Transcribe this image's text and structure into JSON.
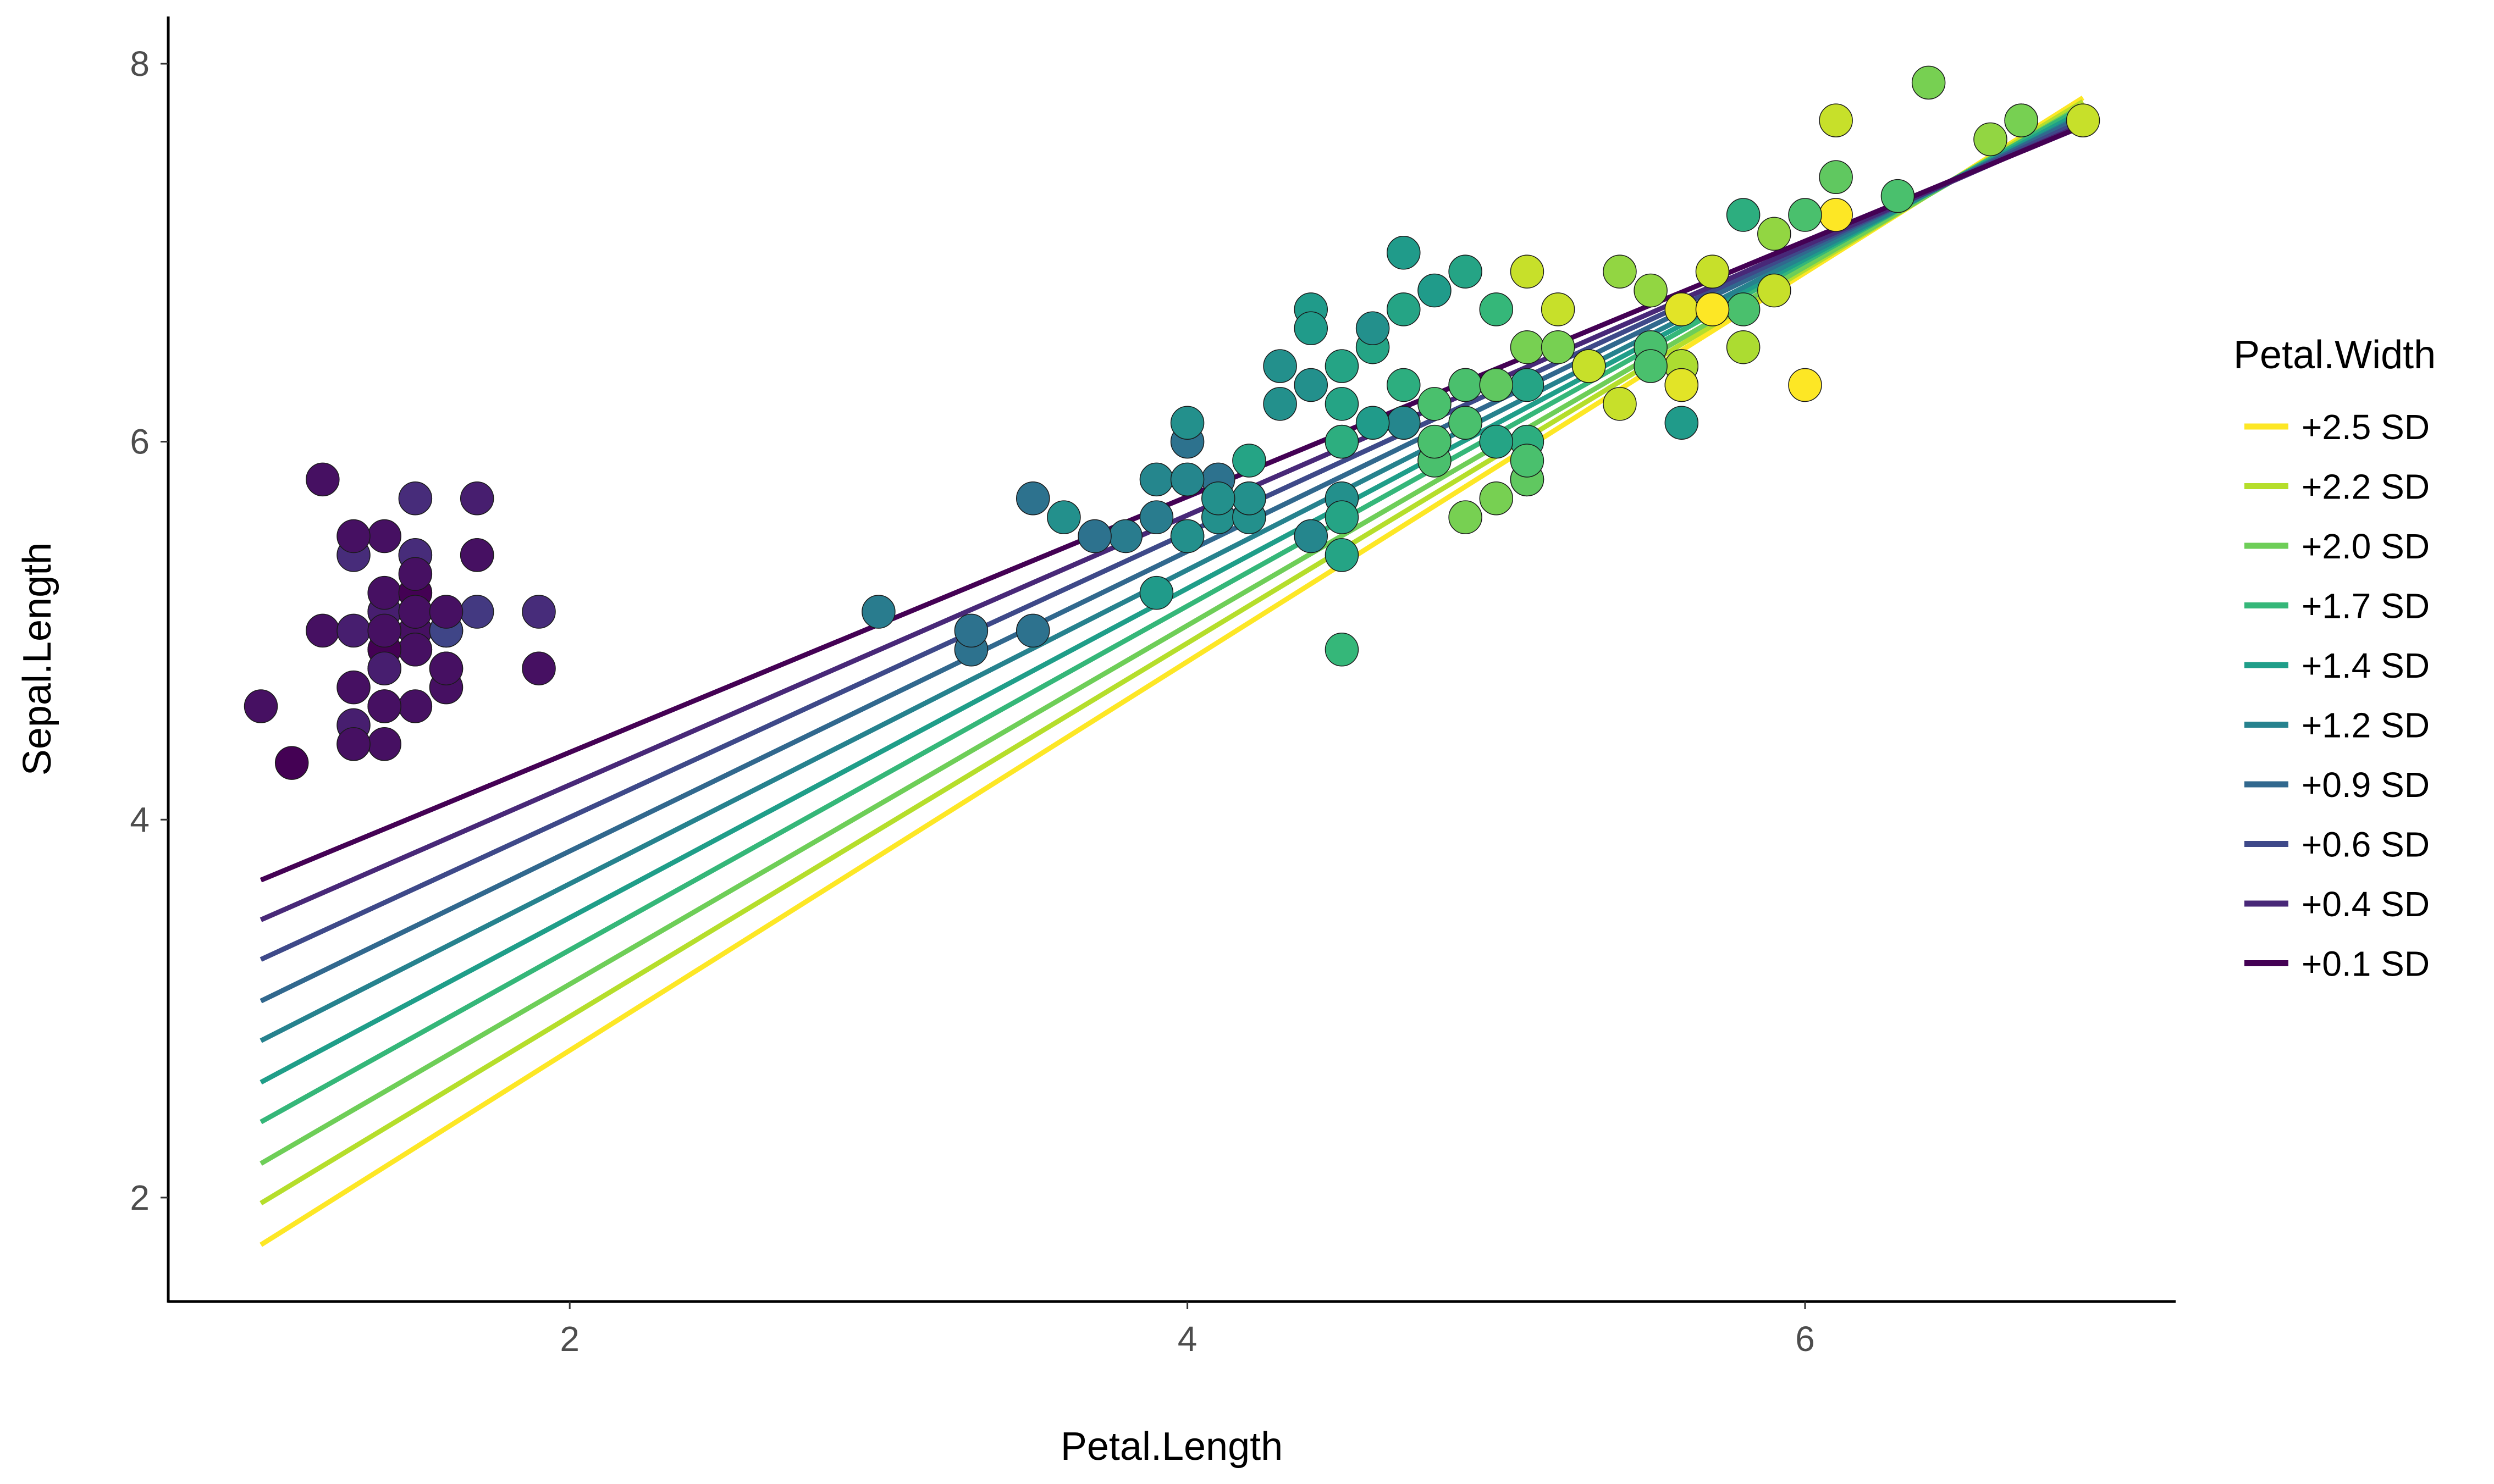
{
  "chart_data": {
    "type": "scatter",
    "title": "",
    "xlabel": "Petal.Length",
    "ylabel": "Sepal.Length",
    "xlim": [
      0.7,
      7.2
    ],
    "ylim": [
      1.45,
      8.25
    ],
    "x_ticks": [
      2,
      4,
      6
    ],
    "y_ticks": [
      2,
      4,
      6,
      8
    ],
    "grid": false,
    "legend": {
      "title": "Petal.Width",
      "placement": "right",
      "entries": [
        "+2.5 SD",
        "+2.2 SD",
        "+2.0 SD",
        "+1.7 SD",
        "+1.4 SD",
        "+1.2 SD",
        "+0.9 SD",
        "+0.6 SD",
        "+0.4 SD",
        "+0.1 SD"
      ]
    },
    "color_scale": {
      "min": 0.1,
      "max": 2.5,
      "palette": [
        "#440154",
        "#482878",
        "#3e4989",
        "#31688e",
        "#26828e",
        "#1f9e89",
        "#35b779",
        "#6ece58",
        "#b5de2b",
        "#fde725"
      ]
    },
    "lines": [
      {
        "name": "+2.5 SD",
        "petal_width": 2.5,
        "color": "#fde725",
        "x": [
          1.0,
          6.9
        ],
        "y": [
          1.75,
          7.82
        ]
      },
      {
        "name": "+2.2 SD",
        "petal_width": 2.2,
        "color": "#b5de2b",
        "x": [
          1.0,
          6.9
        ],
        "y": [
          1.97,
          7.8
        ]
      },
      {
        "name": "+2.0 SD",
        "petal_width": 2.0,
        "color": "#6ece58",
        "x": [
          1.0,
          6.9
        ],
        "y": [
          2.18,
          7.78
        ]
      },
      {
        "name": "+1.7 SD",
        "petal_width": 1.7,
        "color": "#35b779",
        "x": [
          1.0,
          6.9
        ],
        "y": [
          2.4,
          7.77
        ]
      },
      {
        "name": "+1.4 SD",
        "petal_width": 1.4,
        "color": "#1f9e89",
        "x": [
          1.0,
          6.9
        ],
        "y": [
          2.61,
          7.75
        ]
      },
      {
        "name": "+1.2 SD",
        "petal_width": 1.2,
        "color": "#26828e",
        "x": [
          1.0,
          6.9
        ],
        "y": [
          2.83,
          7.73
        ]
      },
      {
        "name": "+0.9 SD",
        "petal_width": 0.9,
        "color": "#31688e",
        "x": [
          1.0,
          6.9
        ],
        "y": [
          3.04,
          7.72
        ]
      },
      {
        "name": "+0.6 SD",
        "petal_width": 0.6,
        "color": "#3e4989",
        "x": [
          1.0,
          6.9
        ],
        "y": [
          3.26,
          7.7
        ]
      },
      {
        "name": "+0.4 SD",
        "petal_width": 0.4,
        "color": "#482878",
        "x": [
          1.0,
          6.9
        ],
        "y": [
          3.47,
          7.68
        ]
      },
      {
        "name": "+0.1 SD",
        "petal_width": 0.1,
        "color": "#440154",
        "x": [
          1.0,
          6.9
        ],
        "y": [
          3.68,
          7.67
        ]
      }
    ],
    "points": [
      [
        1.4,
        5.1,
        0.2
      ],
      [
        1.4,
        4.9,
        0.2
      ],
      [
        1.3,
        4.7,
        0.2
      ],
      [
        1.5,
        4.6,
        0.2
      ],
      [
        1.4,
        5.0,
        0.2
      ],
      [
        1.7,
        5.4,
        0.4
      ],
      [
        1.4,
        4.6,
        0.3
      ],
      [
        1.5,
        5.0,
        0.2
      ],
      [
        1.4,
        4.4,
        0.2
      ],
      [
        1.5,
        4.9,
        0.1
      ],
      [
        1.5,
        5.4,
        0.2
      ],
      [
        1.6,
        4.8,
        0.2
      ],
      [
        1.4,
        4.8,
        0.1
      ],
      [
        1.1,
        4.3,
        0.1
      ],
      [
        1.2,
        5.8,
        0.2
      ],
      [
        1.5,
        5.7,
        0.4
      ],
      [
        1.3,
        5.4,
        0.4
      ],
      [
        1.4,
        5.1,
        0.3
      ],
      [
        1.7,
        5.7,
        0.3
      ],
      [
        1.5,
        5.1,
        0.3
      ],
      [
        1.7,
        5.4,
        0.2
      ],
      [
        1.5,
        5.1,
        0.4
      ],
      [
        1.0,
        4.6,
        0.2
      ],
      [
        1.7,
        5.1,
        0.5
      ],
      [
        1.9,
        4.8,
        0.2
      ],
      [
        1.6,
        5.0,
        0.2
      ],
      [
        1.6,
        5.0,
        0.4
      ],
      [
        1.5,
        5.2,
        0.2
      ],
      [
        1.4,
        5.2,
        0.2
      ],
      [
        1.6,
        4.7,
        0.2
      ],
      [
        1.6,
        4.8,
        0.2
      ],
      [
        1.5,
        5.4,
        0.4
      ],
      [
        1.5,
        5.2,
        0.1
      ],
      [
        1.4,
        5.5,
        0.2
      ],
      [
        1.5,
        4.9,
        0.2
      ],
      [
        1.2,
        5.0,
        0.2
      ],
      [
        1.3,
        5.5,
        0.2
      ],
      [
        1.4,
        4.9,
        0.1
      ],
      [
        1.3,
        4.4,
        0.2
      ],
      [
        1.5,
        5.1,
        0.2
      ],
      [
        1.3,
        5.0,
        0.3
      ],
      [
        1.3,
        4.5,
        0.3
      ],
      [
        1.3,
        4.4,
        0.2
      ],
      [
        1.6,
        5.0,
        0.6
      ],
      [
        1.9,
        5.1,
        0.4
      ],
      [
        1.4,
        4.8,
        0.3
      ],
      [
        1.6,
        5.1,
        0.2
      ],
      [
        1.4,
        4.6,
        0.2
      ],
      [
        1.5,
        5.3,
        0.2
      ],
      [
        1.4,
        5.0,
        0.2
      ],
      [
        4.7,
        7.0,
        1.4
      ],
      [
        4.5,
        6.4,
        1.5
      ],
      [
        4.9,
        6.9,
        1.5
      ],
      [
        4.0,
        5.5,
        1.3
      ],
      [
        4.6,
        6.5,
        1.5
      ],
      [
        4.5,
        5.7,
        1.3
      ],
      [
        4.7,
        6.3,
        1.6
      ],
      [
        3.3,
        4.9,
        1.0
      ],
      [
        4.6,
        6.6,
        1.3
      ],
      [
        3.9,
        5.2,
        1.4
      ],
      [
        3.5,
        5.0,
        1.0
      ],
      [
        4.2,
        5.9,
        1.5
      ],
      [
        4.0,
        6.0,
        1.0
      ],
      [
        4.7,
        6.1,
        1.4
      ],
      [
        3.6,
        5.6,
        1.3
      ],
      [
        4.4,
        6.7,
        1.4
      ],
      [
        4.5,
        5.6,
        1.5
      ],
      [
        4.1,
        5.8,
        1.0
      ],
      [
        4.5,
        6.2,
        1.5
      ],
      [
        3.9,
        5.6,
        1.1
      ],
      [
        4.8,
        5.9,
        1.8
      ],
      [
        4.0,
        6.1,
        1.3
      ],
      [
        4.9,
        6.3,
        1.5
      ],
      [
        4.7,
        6.1,
        1.2
      ],
      [
        4.3,
        6.4,
        1.3
      ],
      [
        4.4,
        6.6,
        1.4
      ],
      [
        4.8,
        6.8,
        1.4
      ],
      [
        5.0,
        6.7,
        1.7
      ],
      [
        4.5,
        6.0,
        1.5
      ],
      [
        3.5,
        5.7,
        1.0
      ],
      [
        3.8,
        5.5,
        1.1
      ],
      [
        3.7,
        5.5,
        1.0
      ],
      [
        3.9,
        5.8,
        1.2
      ],
      [
        5.1,
        6.0,
        1.6
      ],
      [
        4.5,
        5.4,
        1.5
      ],
      [
        4.5,
        6.0,
        1.6
      ],
      [
        4.7,
        6.7,
        1.5
      ],
      [
        4.4,
        6.3,
        1.3
      ],
      [
        4.1,
        5.6,
        1.3
      ],
      [
        4.0,
        5.5,
        1.3
      ],
      [
        4.4,
        5.5,
        1.2
      ],
      [
        4.6,
        6.1,
        1.4
      ],
      [
        4.0,
        5.8,
        1.2
      ],
      [
        3.3,
        5.0,
        1.0
      ],
      [
        4.2,
        5.6,
        1.3
      ],
      [
        4.2,
        5.7,
        1.2
      ],
      [
        4.2,
        5.7,
        1.3
      ],
      [
        4.3,
        6.2,
        1.3
      ],
      [
        3.0,
        5.1,
        1.1
      ],
      [
        4.1,
        5.7,
        1.3
      ],
      [
        6.0,
        6.3,
        2.5
      ],
      [
        5.1,
        5.8,
        1.9
      ],
      [
        5.9,
        7.1,
        2.1
      ],
      [
        5.6,
        6.3,
        1.8
      ],
      [
        5.8,
        6.5,
        2.2
      ],
      [
        6.6,
        7.6,
        2.1
      ],
      [
        4.5,
        4.9,
        1.7
      ],
      [
        6.3,
        7.3,
        1.8
      ],
      [
        5.8,
        6.7,
        1.8
      ],
      [
        6.1,
        7.2,
        2.5
      ],
      [
        5.1,
        6.5,
        2.0
      ],
      [
        5.3,
        6.4,
        1.9
      ],
      [
        5.5,
        6.8,
        2.1
      ],
      [
        5.0,
        5.7,
        2.0
      ],
      [
        5.1,
        5.8,
        2.4
      ],
      [
        5.3,
        6.4,
        2.3
      ],
      [
        5.5,
        6.5,
        1.8
      ],
      [
        6.7,
        7.7,
        2.2
      ],
      [
        6.9,
        7.7,
        2.3
      ],
      [
        5.0,
        6.0,
        1.5
      ],
      [
        5.7,
        6.9,
        2.3
      ],
      [
        4.9,
        5.6,
        2.0
      ],
      [
        6.7,
        7.7,
        2.0
      ],
      [
        4.9,
        6.3,
        1.8
      ],
      [
        5.7,
        6.7,
        2.1
      ],
      [
        6.0,
        7.2,
        1.8
      ],
      [
        4.8,
        6.2,
        1.8
      ],
      [
        4.9,
        6.1,
        1.8
      ],
      [
        5.6,
        6.4,
        2.1
      ],
      [
        5.8,
        7.2,
        1.6
      ],
      [
        6.1,
        7.4,
        1.9
      ],
      [
        6.4,
        7.9,
        2.0
      ],
      [
        5.6,
        6.4,
        2.2
      ],
      [
        5.1,
        6.3,
        1.5
      ],
      [
        5.6,
        6.1,
        1.4
      ],
      [
        6.1,
        7.7,
        2.3
      ],
      [
        5.6,
        6.3,
        2.4
      ],
      [
        5.5,
        6.4,
        1.8
      ],
      [
        4.8,
        6.0,
        1.8
      ],
      [
        5.4,
        6.9,
        2.1
      ],
      [
        5.6,
        6.7,
        2.4
      ],
      [
        5.1,
        6.9,
        2.3
      ],
      [
        5.1,
        5.8,
        1.9
      ],
      [
        5.9,
        6.8,
        2.3
      ],
      [
        5.7,
        6.7,
        2.5
      ],
      [
        5.2,
        6.7,
        2.3
      ],
      [
        5.0,
        6.3,
        1.9
      ],
      [
        5.2,
        6.5,
        2.0
      ],
      [
        5.4,
        6.2,
        2.3
      ],
      [
        5.1,
        5.9,
        1.8
      ]
    ]
  }
}
